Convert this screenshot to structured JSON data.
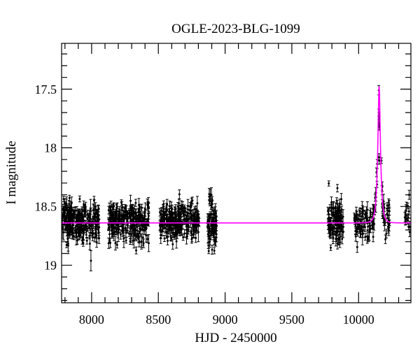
{
  "chart_data": {
    "type": "scatter",
    "title": "OGLE-2023-BLG-1099",
    "xlabel": "HJD - 2450000",
    "ylabel": "I magnitude",
    "xlim": [
      7775,
      10392
    ],
    "ylim_mag": [
      19.32,
      17.11
    ],
    "y_axis_inverted": true,
    "x_major_ticks": [
      8000,
      8500,
      9000,
      9500,
      10000
    ],
    "x_tick_labels": [
      "8000",
      "8500",
      "9000",
      "9500",
      "10000"
    ],
    "x_minor_step": 100,
    "y_major_ticks": [
      17.5,
      18,
      18.5,
      19
    ],
    "y_tick_labels": [
      "17.5",
      "18",
      "18.5",
      "19"
    ],
    "y_minor_step": 0.1,
    "grid": false,
    "background_color": "#ffffff",
    "axis_color": "#000000",
    "point_color": "#000000",
    "model_color": "#ff00ff",
    "baseline_mag": 18.64,
    "model": {
      "type": "paczynski-microlensing",
      "t0": 10154,
      "tE": 20,
      "u0": 0.36,
      "baseline_mag": 18.64,
      "peak_mag": 17.48
    },
    "clusters": [
      {
        "name": "season-1",
        "t_range": [
          7780,
          8058
        ],
        "n": 230,
        "mag_mean": 18.63,
        "mag_std": 0.085
      },
      {
        "name": "season-2",
        "t_range": [
          8126,
          8429
        ],
        "n": 230,
        "mag_mean": 18.63,
        "mag_std": 0.085
      },
      {
        "name": "season-3",
        "t_range": [
          8508,
          8806
        ],
        "n": 230,
        "mag_mean": 18.63,
        "mag_std": 0.085
      },
      {
        "name": "season-4-narrow",
        "t_range": [
          8869,
          8937
        ],
        "n": 72,
        "mag_mean": 18.66,
        "mag_std": 0.1
      },
      {
        "name": "season-5",
        "t_range": [
          9770,
          9885
        ],
        "n": 115,
        "mag_mean": 18.62,
        "mag_std": 0.09
      },
      {
        "name": "season-6-event",
        "t_range": [
          9965,
          10235
        ],
        "n": 115,
        "mag_std": 0.07,
        "follow_model": true
      },
      {
        "name": "season-6-end",
        "t_range": [
          10345,
          10385
        ],
        "n": 14,
        "mag_mean": 18.6,
        "mag_std": 0.08
      }
    ],
    "peak_points": [
      {
        "t": 10152,
        "mag": 17.51,
        "err": 0.04
      },
      {
        "t": 10152,
        "mag": 17.7,
        "err": 0.03
      },
      {
        "t": 10154,
        "mag": 17.73,
        "err": 0.03
      },
      {
        "t": 10153,
        "mag": 17.79,
        "err": 0.03
      },
      {
        "t": 10155,
        "mag": 17.82,
        "err": 0.03
      },
      {
        "t": 10153,
        "mag": 18.08,
        "err": 0.03
      },
      {
        "t": 10155,
        "mag": 18.11,
        "err": 0.03
      }
    ],
    "seed": 42
  }
}
